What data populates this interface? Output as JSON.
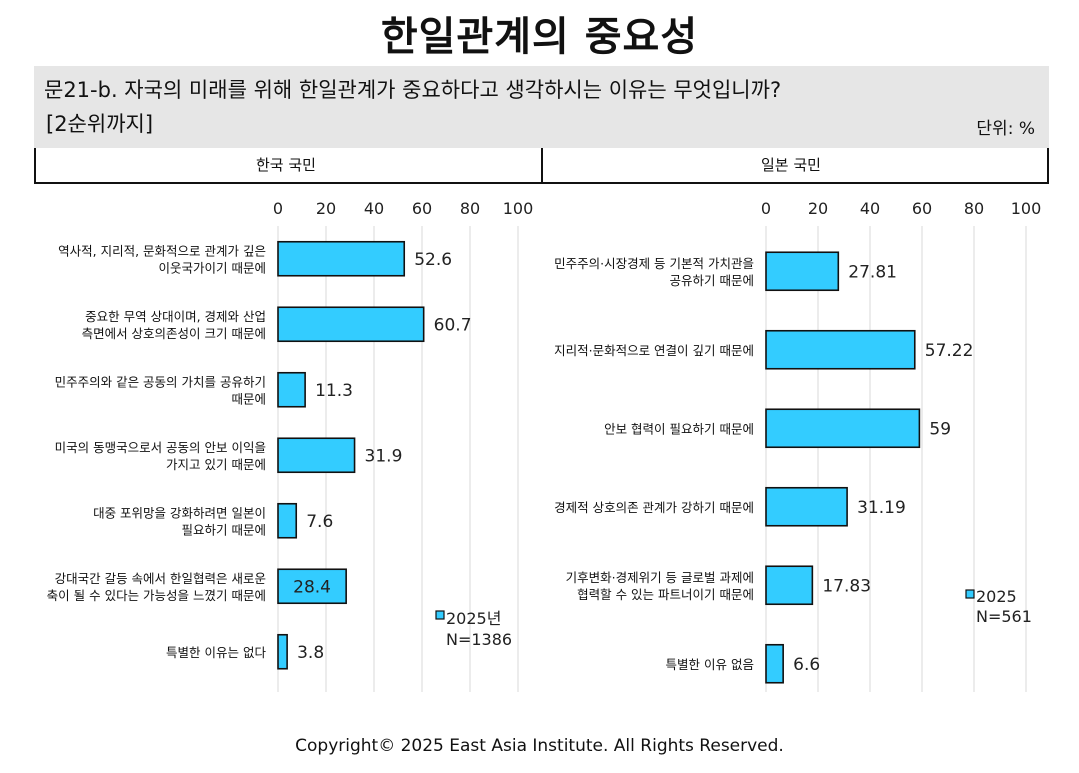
{
  "title": "한일관계의 중요성",
  "question": {
    "line1": "문21-b. 자국의 미래를 위해 한일관계가 중요하다고 생각하시는 이유는 무엇입니까?",
    "line2": "[2순위까지]",
    "unit": "단위: %"
  },
  "panels": {
    "left_label": "한국 국민",
    "right_label": "일본 국민"
  },
  "copyright": "Copyright© 2025 East Asia Institute. All Rights Reserved.",
  "colors": {
    "bar": "#33ccff",
    "outline": "#111111",
    "grid": "#d9d9d9"
  },
  "chart_data": [
    {
      "type": "bar",
      "orientation": "horizontal",
      "panel": "한국 국민",
      "xlim": [
        0,
        100
      ],
      "ticks": [
        0,
        20,
        40,
        60,
        80,
        100
      ],
      "legend": {
        "label": "2025년",
        "n": "N=1386",
        "placement": "bottom-right"
      },
      "categories": [
        [
          "역사적, 지리적, 문화적으로 관계가 깊은",
          "이웃국가이기 때문에"
        ],
        [
          "중요한 무역 상대이며, 경제와 산업",
          "측면에서 상호의존성이 크기 때문에"
        ],
        [
          "민주주의와 같은 공동의 가치를 공유하기",
          "때문에"
        ],
        [
          "미국의 동맹국으로서 공동의 안보 이익을",
          "가지고 있기 때문에"
        ],
        [
          "대중 포위망을 강화하려면 일본이",
          "필요하기 때문에"
        ],
        [
          "강대국간 갈등 속에서 한일협력은 새로운",
          "축이 될 수 있다는 가능성을 느꼈기 때문에"
        ],
        [
          "특별한 이유는 없다"
        ]
      ],
      "values": [
        52.6,
        60.7,
        11.3,
        31.9,
        7.6,
        28.4,
        3.8
      ],
      "value_labels": [
        "52.6",
        "60.7",
        "11.3",
        "31.9",
        "7.6",
        "28.4",
        "3.8"
      ]
    },
    {
      "type": "bar",
      "orientation": "horizontal",
      "panel": "일본 국민",
      "xlim": [
        0,
        100
      ],
      "ticks": [
        0,
        20,
        40,
        60,
        80,
        100
      ],
      "legend": {
        "label": "2025",
        "n": "N=561",
        "placement": "bottom-right"
      },
      "categories": [
        [
          "민주주의·시장경제 등 기본적 가치관을",
          "공유하기 때문에"
        ],
        [
          "지리적·문화적으로 연결이 깊기 때문에"
        ],
        [
          "안보 협력이 필요하기 때문에"
        ],
        [
          "경제적 상호의존 관계가 강하기 때문에"
        ],
        [
          "기후변화·경제위기 등 글로벌 과제에",
          "협력할 수 있는 파트너이기 때문에"
        ],
        [
          "특별한 이유 없음"
        ]
      ],
      "values": [
        27.81,
        57.22,
        59,
        31.19,
        17.83,
        6.6
      ],
      "value_labels": [
        "27.81",
        "57.22",
        "59",
        "31.19",
        "17.83",
        "6.6"
      ]
    }
  ]
}
